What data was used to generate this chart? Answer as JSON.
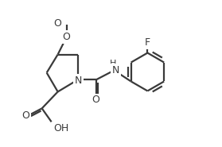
{
  "bg_color": "#ffffff",
  "line_color": "#3a3a3a",
  "line_width": 1.6,
  "font_size": 9,
  "figsize": [
    2.79,
    1.85
  ],
  "dpi": 100,
  "xlim": [
    -0.05,
    1.15
  ],
  "ylim": [
    0.1,
    1.02
  ]
}
